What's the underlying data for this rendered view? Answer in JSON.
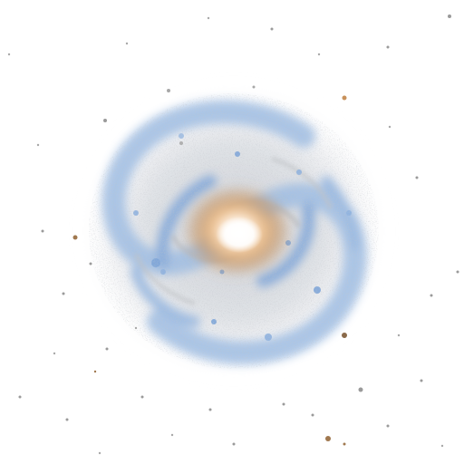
{
  "image": {
    "subject": "spiral-galaxy",
    "rendering": "color-inverted",
    "colors": {
      "background": "#ffffff",
      "core_bright": "#ffffff",
      "core_warm": "#f0c08a",
      "bulge_brown": "#c8915a",
      "disk_gray": "#c9ccd2",
      "arm_blue": "#9fbde3",
      "arm_blue_deep": "#7fa6d9",
      "dust_gray": "#b7b9bd",
      "star_brown": "#8a6a4a",
      "star_gray": "#9a9a9a"
    }
  }
}
